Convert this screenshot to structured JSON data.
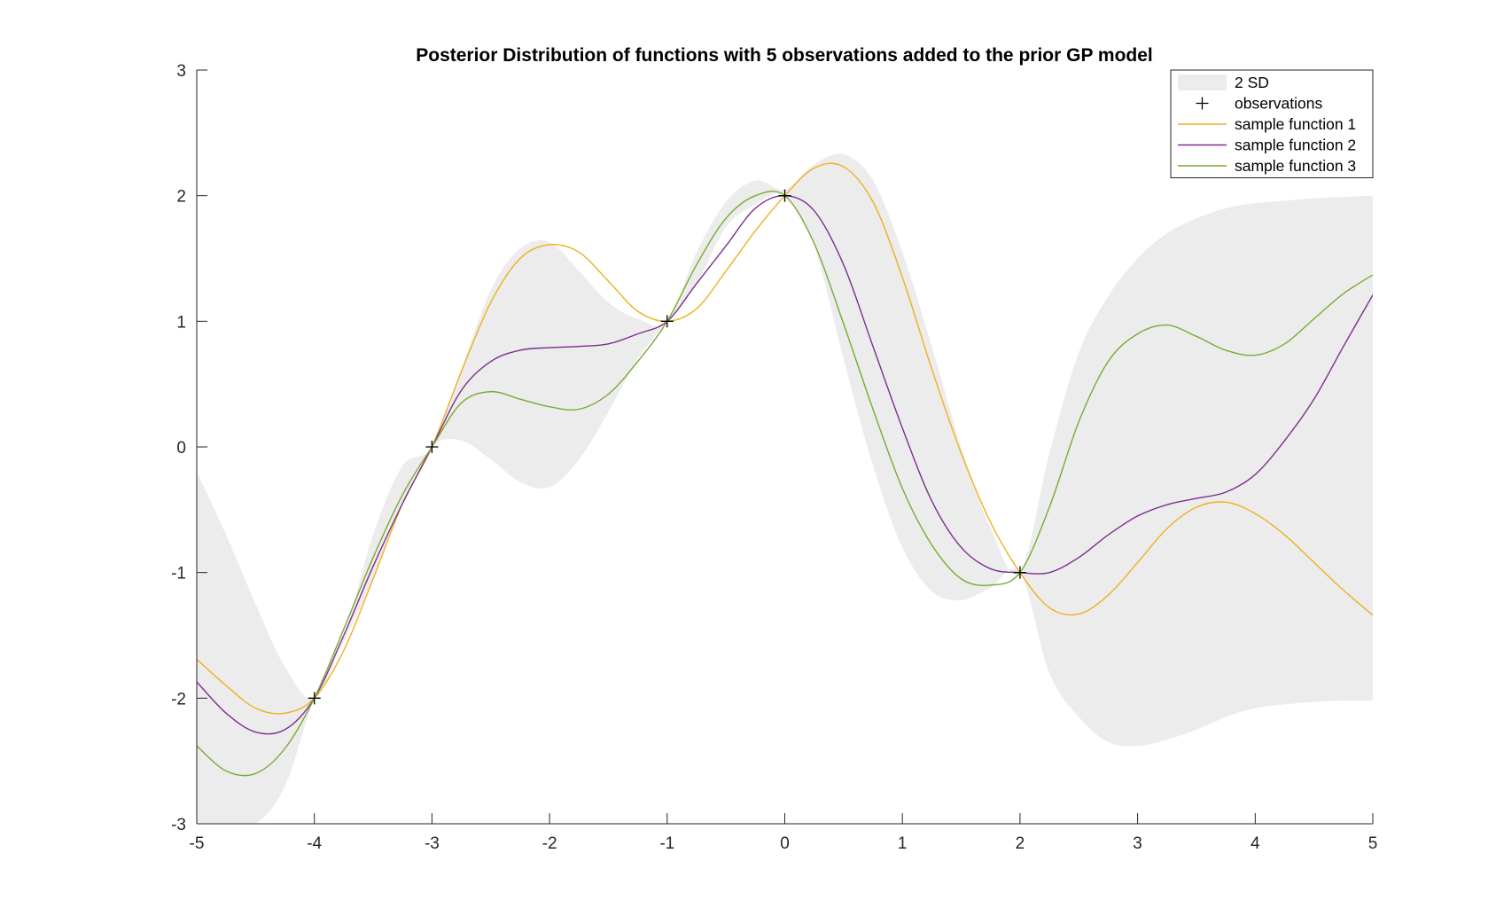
{
  "chart_data": {
    "type": "line",
    "title": "Posterior Distribution of functions with 5 observations added to the prior GP model",
    "xlabel": "",
    "ylabel": "",
    "xlim": [
      -5,
      5
    ],
    "ylim": [
      -3,
      3
    ],
    "x_ticks": [
      "-5",
      "-4",
      "-3",
      "-2",
      "-1",
      "0",
      "1",
      "2",
      "3",
      "4",
      "5"
    ],
    "y_ticks": [
      "-3",
      "-2",
      "-1",
      "0",
      "1",
      "2",
      "3"
    ],
    "grid": false,
    "legend_position": "top-right",
    "legend": [
      "2 SD",
      "observations",
      "sample function 1",
      "sample function 2",
      "sample function 3"
    ],
    "band": {
      "name": "2 SD",
      "color": "#ececec",
      "x": [
        -5.0,
        -4.75,
        -4.5,
        -4.25,
        -4.0,
        -3.75,
        -3.5,
        -3.25,
        -3.0,
        -2.75,
        -2.5,
        -2.25,
        -2.0,
        -1.75,
        -1.5,
        -1.25,
        -1.0,
        -0.75,
        -0.5,
        -0.25,
        0.0,
        0.25,
        0.5,
        0.75,
        1.0,
        1.25,
        1.5,
        1.75,
        2.0,
        2.25,
        2.5,
        2.75,
        3.0,
        3.25,
        3.5,
        3.75,
        4.0,
        4.25,
        4.5,
        4.75,
        5.0
      ],
      "upper": [
        -0.2,
        -0.7,
        -1.25,
        -1.75,
        -2.0,
        -1.5,
        -0.7,
        -0.15,
        0.0,
        0.62,
        1.25,
        1.58,
        1.63,
        1.4,
        1.15,
        1.02,
        1.0,
        1.55,
        1.95,
        2.12,
        2.05,
        2.25,
        2.33,
        2.12,
        1.55,
        0.8,
        0.0,
        -0.65,
        -1.0,
        -0.05,
        0.75,
        1.2,
        1.5,
        1.7,
        1.82,
        1.9,
        1.94,
        1.96,
        1.98,
        1.99,
        2.0
      ],
      "lower": [
        -3.0,
        -3.0,
        -3.0,
        -2.7,
        -2.0,
        -1.55,
        -1.05,
        -0.45,
        0.0,
        0.05,
        -0.1,
        -0.28,
        -0.32,
        -0.1,
        0.28,
        0.7,
        1.0,
        1.3,
        1.75,
        1.93,
        2.0,
        1.6,
        0.7,
        -0.15,
        -0.8,
        -1.15,
        -1.22,
        -1.12,
        -1.0,
        -1.8,
        -2.15,
        -2.35,
        -2.38,
        -2.33,
        -2.25,
        -2.15,
        -2.08,
        -2.05,
        -2.03,
        -2.02,
        -2.02
      ]
    },
    "observations": {
      "name": "observations",
      "x": [
        -4,
        -3,
        -1,
        0,
        2
      ],
      "y": [
        -2,
        0,
        1,
        2,
        -1
      ]
    },
    "series": [
      {
        "name": "sample function 1",
        "color": "#edb120",
        "x": [
          -5.0,
          -4.75,
          -4.5,
          -4.25,
          -4.0,
          -3.75,
          -3.5,
          -3.25,
          -3.0,
          -2.75,
          -2.5,
          -2.25,
          -2.0,
          -1.75,
          -1.5,
          -1.25,
          -1.0,
          -0.75,
          -0.5,
          -0.25,
          0.0,
          0.25,
          0.5,
          0.75,
          1.0,
          1.25,
          1.5,
          1.75,
          2.0,
          2.25,
          2.5,
          2.75,
          3.0,
          3.25,
          3.5,
          3.75,
          4.0,
          4.25,
          4.5,
          4.75,
          5.0
        ],
        "y": [
          -1.69,
          -1.9,
          -2.08,
          -2.12,
          -2.0,
          -1.62,
          -1.05,
          -0.45,
          0.0,
          0.6,
          1.15,
          1.5,
          1.61,
          1.55,
          1.32,
          1.08,
          1.0,
          1.1,
          1.4,
          1.72,
          2.0,
          2.22,
          2.23,
          1.95,
          1.35,
          0.62,
          -0.05,
          -0.6,
          -1.0,
          -1.28,
          -1.33,
          -1.18,
          -0.92,
          -0.65,
          -0.48,
          -0.44,
          -0.53,
          -0.7,
          -0.92,
          -1.14,
          -1.34
        ]
      },
      {
        "name": "sample function 2",
        "color": "#7e2f8e",
        "x": [
          -5.0,
          -4.75,
          -4.5,
          -4.25,
          -4.0,
          -3.75,
          -3.5,
          -3.25,
          -3.0,
          -2.75,
          -2.5,
          -2.25,
          -2.0,
          -1.75,
          -1.5,
          -1.25,
          -1.0,
          -0.75,
          -0.5,
          -0.25,
          0.0,
          0.25,
          0.5,
          0.75,
          1.0,
          1.25,
          1.5,
          1.75,
          2.0,
          2.25,
          2.5,
          2.75,
          3.0,
          3.25,
          3.5,
          3.75,
          4.0,
          4.25,
          4.5,
          4.75,
          5.0
        ],
        "y": [
          -1.87,
          -2.12,
          -2.27,
          -2.25,
          -2.0,
          -1.5,
          -0.95,
          -0.45,
          0.0,
          0.45,
          0.68,
          0.77,
          0.79,
          0.8,
          0.82,
          0.9,
          1.0,
          1.3,
          1.6,
          1.9,
          2.0,
          1.88,
          1.45,
          0.8,
          0.15,
          -0.43,
          -0.8,
          -0.97,
          -1.0,
          -1.0,
          -0.88,
          -0.7,
          -0.55,
          -0.46,
          -0.41,
          -0.36,
          -0.22,
          0.05,
          0.38,
          0.8,
          1.21
        ]
      },
      {
        "name": "sample function 3",
        "color": "#77ac30",
        "x": [
          -5.0,
          -4.75,
          -4.5,
          -4.25,
          -4.0,
          -3.75,
          -3.5,
          -3.25,
          -3.0,
          -2.75,
          -2.5,
          -2.25,
          -2.0,
          -1.75,
          -1.5,
          -1.25,
          -1.0,
          -0.75,
          -0.5,
          -0.25,
          0.0,
          0.25,
          0.5,
          0.75,
          1.0,
          1.25,
          1.5,
          1.75,
          2.0,
          2.25,
          2.5,
          2.75,
          3.0,
          3.25,
          3.5,
          3.75,
          4.0,
          4.25,
          4.5,
          4.75,
          5.0
        ],
        "y": [
          -2.38,
          -2.58,
          -2.6,
          -2.4,
          -2.0,
          -1.45,
          -0.88,
          -0.38,
          0.0,
          0.35,
          0.44,
          0.38,
          0.32,
          0.3,
          0.42,
          0.68,
          1.0,
          1.45,
          1.82,
          2.0,
          2.0,
          1.62,
          0.98,
          0.3,
          -0.33,
          -0.78,
          -1.05,
          -1.1,
          -1.0,
          -0.48,
          0.2,
          0.68,
          0.9,
          0.97,
          0.88,
          0.77,
          0.73,
          0.82,
          1.02,
          1.22,
          1.37
        ]
      }
    ]
  }
}
